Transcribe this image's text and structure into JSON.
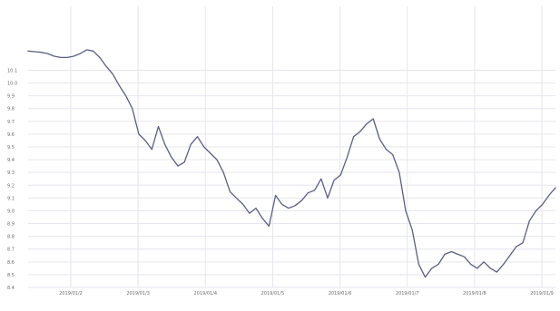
{
  "chart_data": {
    "type": "line",
    "title": "",
    "xlabel": "",
    "ylabel": "",
    "grid": true,
    "legend": "none",
    "colors": {
      "line": "#5a5f86",
      "grid": "#e6e6ee",
      "text": "#6b6b6b",
      "background": "#ffffff"
    },
    "ylim": [
      8.4,
      10.6
    ],
    "y_ticks": [
      "8.4",
      "8.5",
      "8.6",
      "8.7",
      "8.8",
      "8.9",
      "9.0",
      "9.1",
      "9.2",
      "9.3",
      "9.4",
      "9.5",
      "9.6",
      "9.7",
      "9.8",
      "9.9",
      "10.0",
      "10.1"
    ],
    "x_tick_labels": [
      "2019/01/2",
      "2019/01/3",
      "2019/01/4",
      "2019/01/5",
      "2019/01/6",
      "2019/01/7",
      "2019/01/8",
      "2019/01/9"
    ],
    "series": [
      {
        "values": [
          10.25,
          10.245,
          10.24,
          10.23,
          10.21,
          10.2,
          10.2,
          10.21,
          10.23,
          10.26,
          10.25,
          10.2,
          10.13,
          10.07,
          9.98,
          9.9,
          9.8,
          9.6,
          9.55,
          9.48,
          9.66,
          9.52,
          9.42,
          9.35,
          9.38,
          9.52,
          9.58,
          9.5,
          9.45,
          9.4,
          9.3,
          9.15,
          9.1,
          9.05,
          8.98,
          9.02,
          8.94,
          8.88,
          9.12,
          9.05,
          9.02,
          9.04,
          9.08,
          9.14,
          9.16,
          9.25,
          9.1,
          9.24,
          9.28,
          9.42,
          9.58,
          9.62,
          9.68,
          9.72,
          9.56,
          9.48,
          9.44,
          9.3,
          9.0,
          8.85,
          8.58,
          8.48,
          8.55,
          8.58,
          8.66,
          8.68,
          8.66,
          8.64,
          8.58,
          8.55,
          8.6,
          8.55,
          8.52,
          8.58,
          8.65,
          8.72,
          8.75,
          8.92,
          9.0,
          9.05,
          9.12,
          9.18
        ]
      }
    ]
  }
}
